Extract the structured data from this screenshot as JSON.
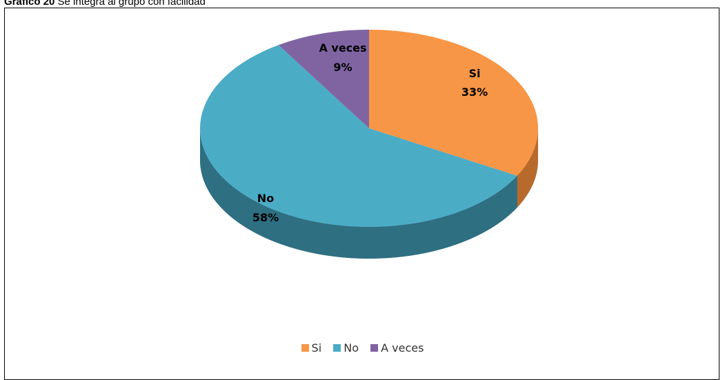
{
  "caption": {
    "bold": "Gráfico 20",
    "text": "Se integra al grupo con facilidad"
  },
  "chart_data": {
    "type": "pie",
    "title": "",
    "categories": [
      "Si",
      "No",
      "A veces"
    ],
    "values": [
      33,
      58,
      9
    ],
    "labels": [
      "33%",
      "58%",
      "9%"
    ],
    "colors": [
      "#F79646",
      "#4BACC6",
      "#8064A2"
    ],
    "legend_position": "bottom"
  }
}
